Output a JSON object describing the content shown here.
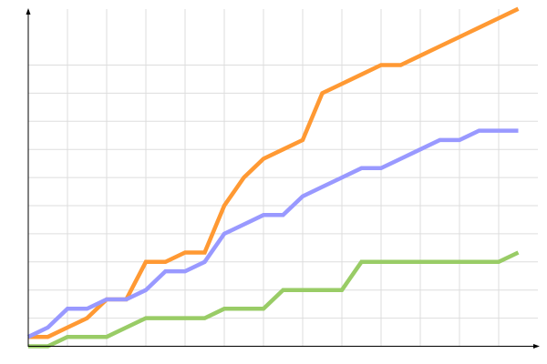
{
  "chart_data": {
    "type": "line",
    "title": "",
    "xlabel": "",
    "ylabel": "",
    "x": [
      0,
      1,
      2,
      3,
      4,
      5,
      6,
      7,
      8,
      9,
      10,
      11,
      12,
      13,
      14,
      15,
      16,
      17,
      18,
      19,
      20,
      21,
      22,
      23,
      24,
      25
    ],
    "xlim": [
      0,
      25.4
    ],
    "ylim": [
      0,
      36
    ],
    "grid": true,
    "legend": "none",
    "series": [
      {
        "color": "#ff9933",
        "values": [
          1,
          1,
          2,
          3,
          5,
          5,
          9,
          9,
          10,
          10,
          15,
          18,
          20,
          21,
          22,
          27,
          28,
          29,
          30,
          30,
          31,
          32,
          33,
          34,
          35,
          36
        ]
      },
      {
        "color": "#9999ff",
        "values": [
          1,
          2,
          4,
          4,
          5,
          5,
          6,
          8,
          8,
          9,
          12,
          13,
          14,
          14,
          16,
          17,
          18,
          19,
          19,
          20,
          21,
          22,
          22,
          23,
          23,
          23
        ]
      },
      {
        "color": "#99cc66",
        "values": [
          0,
          0,
          1,
          1,
          1,
          2,
          3,
          3,
          3,
          3,
          4,
          4,
          4,
          6,
          6,
          6,
          6,
          9,
          9,
          9,
          9,
          9,
          9,
          9,
          9,
          10
        ]
      }
    ]
  }
}
